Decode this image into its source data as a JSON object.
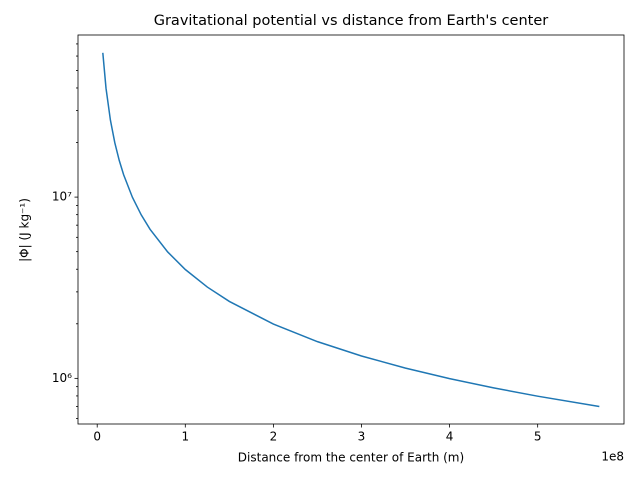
{
  "chart_data": {
    "type": "line",
    "title": "Gravitational potential vs distance from Earth's center",
    "xlabel": "Distance from the center of Earth (m)",
    "ylabel": "|Φ| (J kg⁻¹)",
    "x_offset_label": "1e8",
    "x": [
      6371000,
      10000000,
      15000000,
      20000000,
      25000000,
      30000000,
      40000000,
      50000000,
      60000000,
      80000000,
      100000000,
      125000000,
      150000000,
      200000000,
      250000000,
      300000000,
      350000000,
      400000000,
      450000000,
      500000000,
      570000000
    ],
    "series": [
      {
        "name": "|Φ|",
        "color": "#1f77b4",
        "values": [
          62565000,
          39860000,
          26573000,
          19930000,
          15944000,
          13287000,
          9965000,
          7972000,
          6643000,
          4982500,
          3986000,
          3188800,
          2657300,
          1993000,
          1594400,
          1328700,
          1138900,
          996500,
          885800,
          797200,
          699300
        ]
      }
    ],
    "xlim": [
      -21800000,
      598000000
    ],
    "xticks": [
      {
        "value": 0,
        "label": "0"
      },
      {
        "value": 100000000,
        "label": "1"
      },
      {
        "value": 200000000,
        "label": "2"
      },
      {
        "value": 300000000,
        "label": "3"
      },
      {
        "value": 400000000,
        "label": "4"
      },
      {
        "value": 500000000,
        "label": "5"
      }
    ],
    "ylim": [
      560000,
      78400000
    ],
    "ylog": true,
    "yticks": [
      {
        "value": 1000000,
        "label": "10⁶"
      },
      {
        "value": 10000000,
        "label": "10⁷"
      }
    ],
    "yminorticks": [
      600000,
      700000,
      800000,
      900000,
      2000000,
      3000000,
      4000000,
      5000000,
      6000000,
      7000000,
      8000000,
      9000000,
      20000000,
      30000000,
      40000000,
      50000000,
      60000000,
      70000000
    ],
    "grid": false
  }
}
